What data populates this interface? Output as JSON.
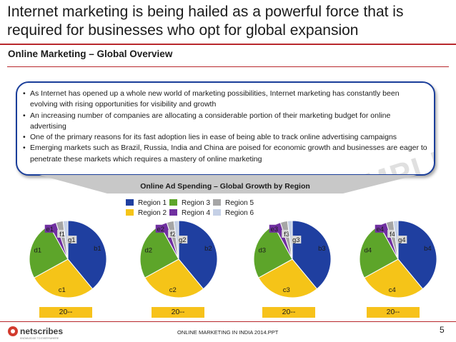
{
  "title": "Internet marketing is being hailed as a powerful force that is required for businesses who opt for global expansion",
  "subtitle": "Online Marketing – Global Overview",
  "watermark": "SAMPLE",
  "bullets": [
    "As Internet has opened up a whole new world of marketing possibilities, Internet marketing has constantly been evolving with rising opportunities for visibility and growth",
    "An increasing number of companies are allocating a considerable portion of their marketing budget for online advertising",
    "One of the primary reasons for its fast adoption lies in ease of being able to track online advertising campaigns",
    "Emerging markets such as Brazil, Russia, India and China are poised for economic growth and businesses are eager to penetrate these markets which requires a mastery of online marketing"
  ],
  "chart_data": {
    "type": "pie",
    "title": "Online Ad Spending – Global Growth by Region",
    "legend": [
      {
        "name": "Region 1",
        "color": "#1f3fa0"
      },
      {
        "name": "Region 2",
        "color": "#f5c418"
      },
      {
        "name": "Region 3",
        "color": "#5da52a"
      },
      {
        "name": "Region 4",
        "color": "#7030a0"
      },
      {
        "name": "Region 5",
        "color": "#a6a6a6"
      },
      {
        "name": "Region 6",
        "color": "#c5d0e6"
      }
    ],
    "pies": [
      {
        "year": "20--",
        "slices": [
          {
            "label": "b1",
            "value": 39
          },
          {
            "label": "c1",
            "value": 28
          },
          {
            "label": "d1",
            "value": 25
          },
          {
            "label": "e1",
            "value": 3
          },
          {
            "label": "f1",
            "value": 3
          },
          {
            "label": "g1",
            "value": 2
          }
        ]
      },
      {
        "year": "20--",
        "slices": [
          {
            "label": "b2",
            "value": 39
          },
          {
            "label": "c2",
            "value": 28
          },
          {
            "label": "d2",
            "value": 25
          },
          {
            "label": "e2",
            "value": 3
          },
          {
            "label": "f2",
            "value": 3
          },
          {
            "label": "g2",
            "value": 2
          }
        ]
      },
      {
        "year": "20--",
        "slices": [
          {
            "label": "b3",
            "value": 39
          },
          {
            "label": "c3",
            "value": 28
          },
          {
            "label": "d3",
            "value": 25
          },
          {
            "label": "e3",
            "value": 3
          },
          {
            "label": "f3",
            "value": 3
          },
          {
            "label": "g3",
            "value": 2
          }
        ]
      },
      {
        "year": "20--",
        "slices": [
          {
            "label": "b4",
            "value": 39
          },
          {
            "label": "c4",
            "value": 28
          },
          {
            "label": "d4",
            "value": 25
          },
          {
            "label": "e4",
            "value": 3
          },
          {
            "label": "f4",
            "value": 3
          },
          {
            "label": "g4",
            "value": 2
          }
        ]
      }
    ]
  },
  "footer": {
    "logo_text": "netscribes",
    "logo_tagline": "KNOWLEDGE TO EVERYWHERE",
    "center_text": "ONLINE MARKETING IN INDIA 2014.PPT",
    "page_number": "5"
  }
}
